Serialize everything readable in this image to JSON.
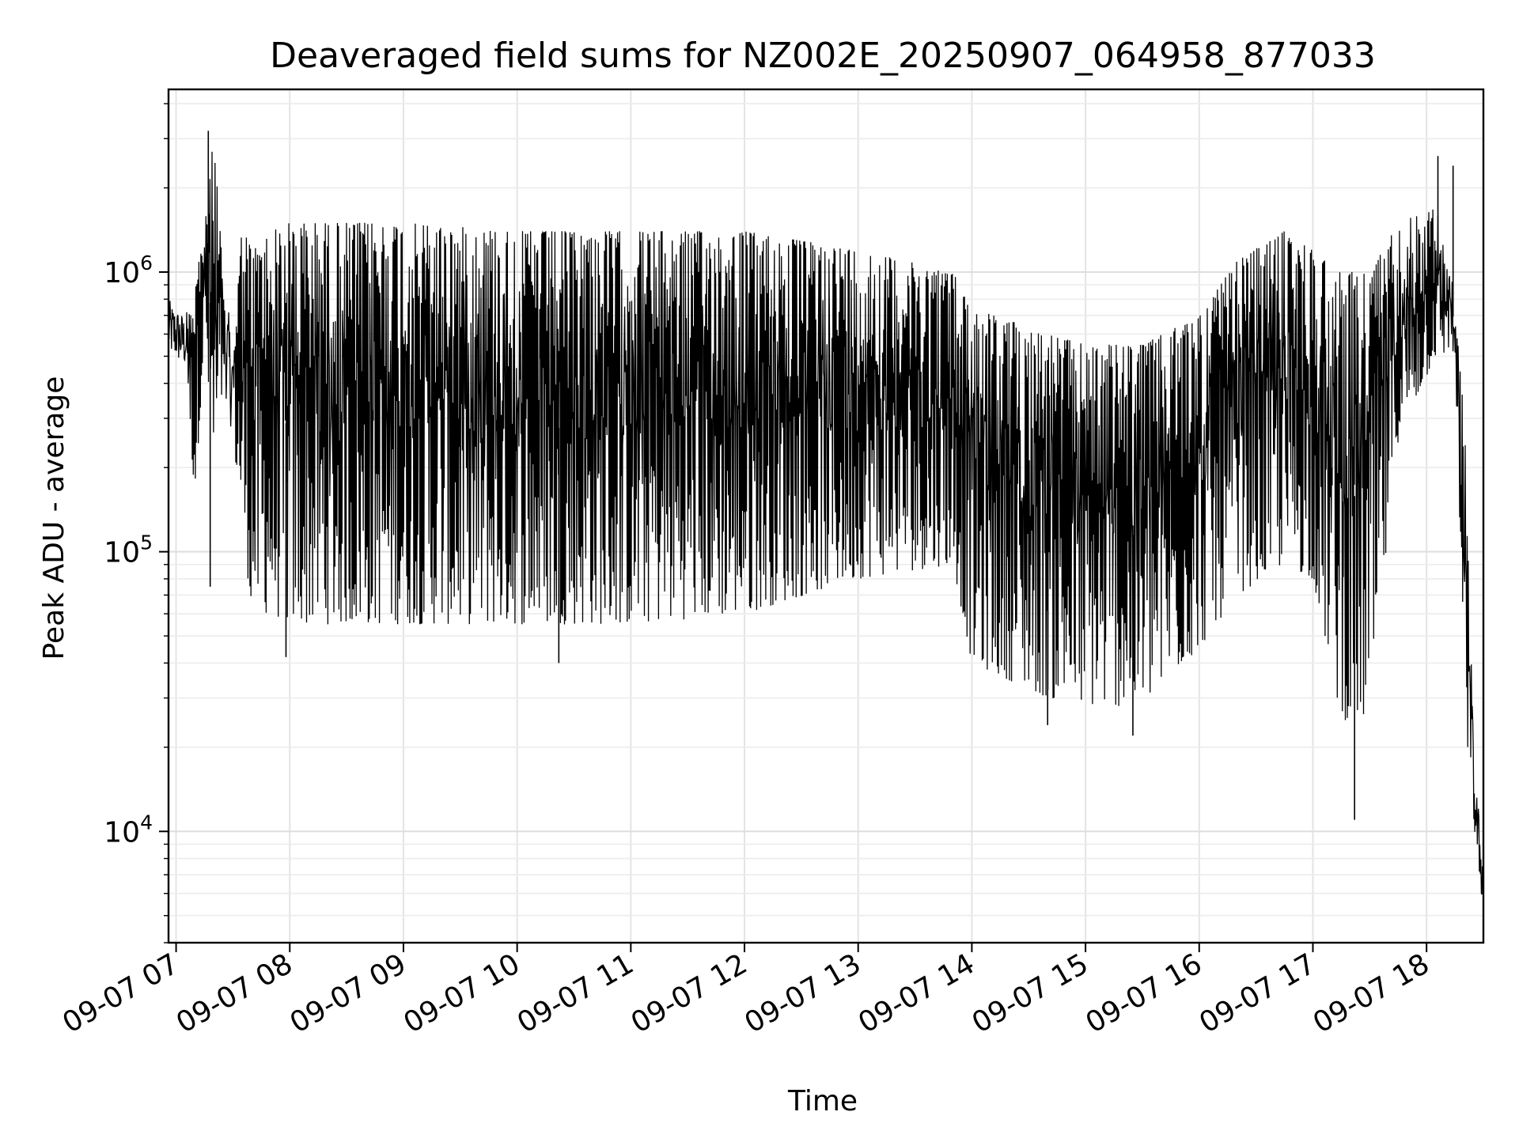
{
  "chart_data": {
    "type": "line",
    "title": "Deaveraged field sums for NZ002E_20250907_064958_877033",
    "xlabel": "Time",
    "ylabel": "Peak ADU - average",
    "y_scale": "log",
    "ylim": [
      4000,
      4500000
    ],
    "xlim": [
      "2025-09-07 06:56",
      "2025-09-07 18:30"
    ],
    "grid": true,
    "line_color": "#000000",
    "x_ticks": [
      {
        "t": "2025-09-07 07:00",
        "label": "09-07 07"
      },
      {
        "t": "2025-09-07 08:00",
        "label": "09-07 08"
      },
      {
        "t": "2025-09-07 09:00",
        "label": "09-07 09"
      },
      {
        "t": "2025-09-07 10:00",
        "label": "09-07 10"
      },
      {
        "t": "2025-09-07 11:00",
        "label": "09-07 11"
      },
      {
        "t": "2025-09-07 12:00",
        "label": "09-07 12"
      },
      {
        "t": "2025-09-07 13:00",
        "label": "09-07 13"
      },
      {
        "t": "2025-09-07 14:00",
        "label": "09-07 14"
      },
      {
        "t": "2025-09-07 15:00",
        "label": "09-07 15"
      },
      {
        "t": "2025-09-07 16:00",
        "label": "09-07 16"
      },
      {
        "t": "2025-09-07 17:00",
        "label": "09-07 17"
      },
      {
        "t": "2025-09-07 18:00",
        "label": "09-07 18"
      }
    ],
    "y_ticks": [
      {
        "value": 10000,
        "base": "10",
        "exp": "4"
      },
      {
        "value": 100000,
        "base": "10",
        "exp": "5"
      },
      {
        "value": 1000000,
        "base": "10",
        "exp": "6"
      }
    ],
    "envelope": [
      {
        "t": "2025-09-07 06:56",
        "low": 500000,
        "high": 800000
      },
      {
        "t": "2025-09-07 07:05",
        "low": 450000,
        "high": 700000
      },
      {
        "t": "2025-09-07 07:10",
        "low": 150000,
        "high": 1000000
      },
      {
        "t": "2025-09-07 07:15",
        "low": 600000,
        "high": 1400000
      },
      {
        "t": "2025-09-07 07:20",
        "low": 150000,
        "high": 3200000
      },
      {
        "t": "2025-09-07 07:25",
        "low": 400000,
        "high": 900000
      },
      {
        "t": "2025-09-07 07:30",
        "low": 250000,
        "high": 600000
      },
      {
        "t": "2025-09-07 07:35",
        "low": 120000,
        "high": 1500000
      },
      {
        "t": "2025-09-07 07:40",
        "low": 60000,
        "high": 1200000
      },
      {
        "t": "2025-09-07 07:50",
        "low": 60000,
        "high": 1400000
      },
      {
        "t": "2025-09-07 08:00",
        "low": 55000,
        "high": 1500000
      },
      {
        "t": "2025-09-07 09:00",
        "low": 55000,
        "high": 1500000
      },
      {
        "t": "2025-09-07 10:00",
        "low": 55000,
        "high": 1400000
      },
      {
        "t": "2025-09-07 11:00",
        "low": 55000,
        "high": 1400000
      },
      {
        "t": "2025-09-07 12:00",
        "low": 60000,
        "high": 1400000
      },
      {
        "t": "2025-09-07 13:00",
        "low": 80000,
        "high": 1200000
      },
      {
        "t": "2025-09-07 13:50",
        "low": 90000,
        "high": 1000000
      },
      {
        "t": "2025-09-07 14:00",
        "low": 40000,
        "high": 750000
      },
      {
        "t": "2025-09-07 14:40",
        "low": 30000,
        "high": 600000
      },
      {
        "t": "2025-09-07 15:00",
        "low": 28000,
        "high": 550000
      },
      {
        "t": "2025-09-07 15:30",
        "low": 28000,
        "high": 550000
      },
      {
        "t": "2025-09-07 16:00",
        "low": 45000,
        "high": 700000
      },
      {
        "t": "2025-09-07 16:20",
        "low": 70000,
        "high": 1100000
      },
      {
        "t": "2025-09-07 16:45",
        "low": 90000,
        "high": 1400000
      },
      {
        "t": "2025-09-07 17:00",
        "low": 80000,
        "high": 1200000
      },
      {
        "t": "2025-09-07 17:15",
        "low": 25000,
        "high": 1000000
      },
      {
        "t": "2025-09-07 17:30",
        "low": 25000,
        "high": 1000000
      },
      {
        "t": "2025-09-07 17:45",
        "low": 250000,
        "high": 1500000
      },
      {
        "t": "2025-09-07 18:05",
        "low": 500000,
        "high": 1700000
      },
      {
        "t": "2025-09-07 18:15",
        "low": 500000,
        "high": 900000
      },
      {
        "t": "2025-09-07 18:20",
        "low": 25000,
        "high": 300000
      },
      {
        "t": "2025-09-07 18:25",
        "low": 10000,
        "high": 18000
      },
      {
        "t": "2025-09-07 18:30",
        "low": 5000,
        "high": 8000
      }
    ],
    "spikes": [
      {
        "t": "2025-09-07 07:17",
        "value": 3200000
      },
      {
        "t": "2025-09-07 07:18",
        "value": 75000
      },
      {
        "t": "2025-09-07 07:58",
        "value": 42000
      },
      {
        "t": "2025-09-07 10:22",
        "value": 40000
      },
      {
        "t": "2025-09-07 14:40",
        "value": 24000
      },
      {
        "t": "2025-09-07 15:25",
        "value": 22000
      },
      {
        "t": "2025-09-07 17:22",
        "value": 11000
      },
      {
        "t": "2025-09-07 18:06",
        "value": 2600000
      },
      {
        "t": "2025-09-07 18:14",
        "value": 2400000
      }
    ]
  }
}
